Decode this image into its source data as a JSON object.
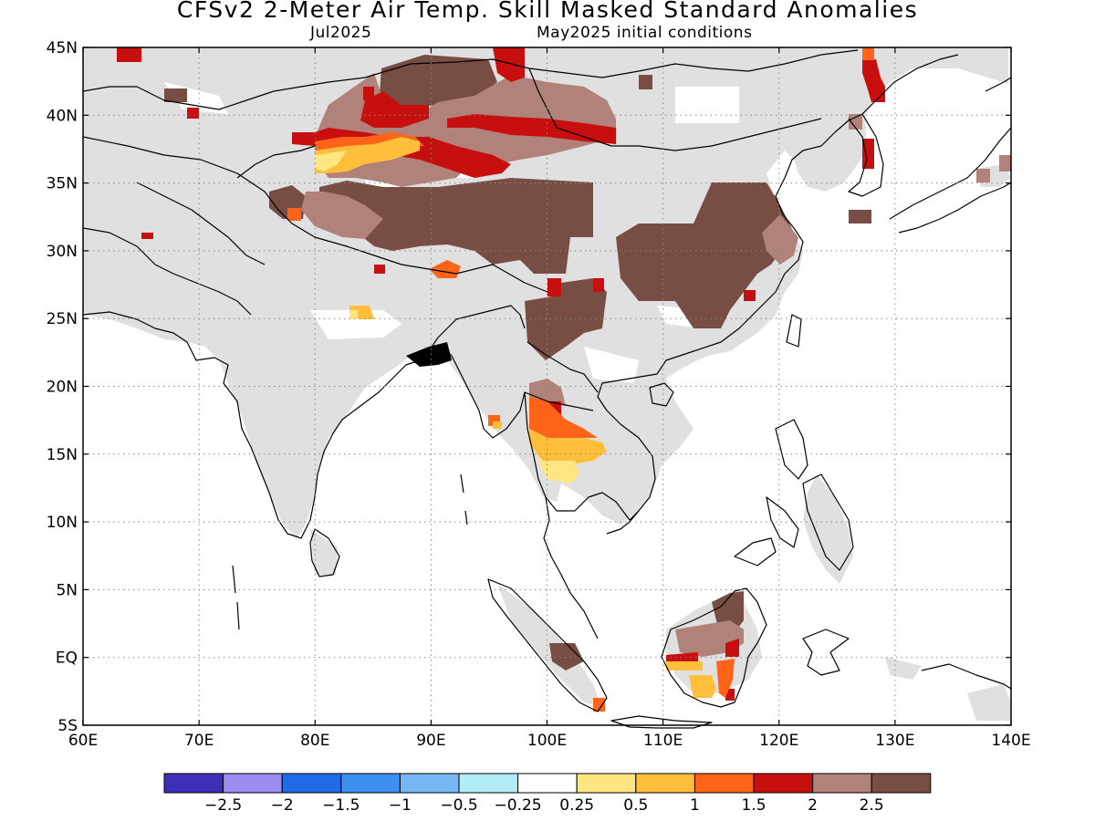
{
  "header": {
    "title": "CFSv2 2-Meter Air Temp. Skill Masked Standard Anomalies",
    "valid_month": "Jul2025",
    "initial_conditions": "May2025 initial conditions"
  },
  "map": {
    "lon_range": [
      60,
      140
    ],
    "lat_range": [
      -5,
      45
    ],
    "lon_ticks": [
      {
        "value": 60,
        "label": "60E"
      },
      {
        "value": 70,
        "label": "70E"
      },
      {
        "value": 80,
        "label": "80E"
      },
      {
        "value": 90,
        "label": "90E"
      },
      {
        "value": 100,
        "label": "100E"
      },
      {
        "value": 110,
        "label": "110E"
      },
      {
        "value": 120,
        "label": "120E"
      },
      {
        "value": 130,
        "label": "130E"
      },
      {
        "value": 140,
        "label": "140E"
      }
    ],
    "lat_ticks": [
      {
        "value": 45,
        "label": "45N"
      },
      {
        "value": 40,
        "label": "40N"
      },
      {
        "value": 35,
        "label": "35N"
      },
      {
        "value": 30,
        "label": "30N"
      },
      {
        "value": 25,
        "label": "25N"
      },
      {
        "value": 20,
        "label": "20N"
      },
      {
        "value": 15,
        "label": "15N"
      },
      {
        "value": 10,
        "label": "10N"
      },
      {
        "value": 5,
        "label": "5N"
      },
      {
        "value": 0,
        "label": "EQ"
      },
      {
        "value": -5,
        "label": "5S"
      }
    ],
    "grid": true,
    "masked_fill_color": "#e0e0e0",
    "coastline_color": "#000000"
  },
  "colorbar": {
    "colors": [
      "#3f2fb8",
      "#9b8cf0",
      "#1f6ae6",
      "#3d8ff0",
      "#76b6f5",
      "#b2ecf7",
      "#ffffff",
      "#ffe680",
      "#ffbf3a",
      "#ff6418",
      "#c80f0f",
      "#b08279",
      "#774d44"
    ],
    "labels": [
      "-2.5",
      "-2",
      "-1.5",
      "-1",
      "-0.5",
      "-0.25",
      "0.25",
      "0.5",
      "1",
      "1.5",
      "2",
      "2.5"
    ]
  }
}
